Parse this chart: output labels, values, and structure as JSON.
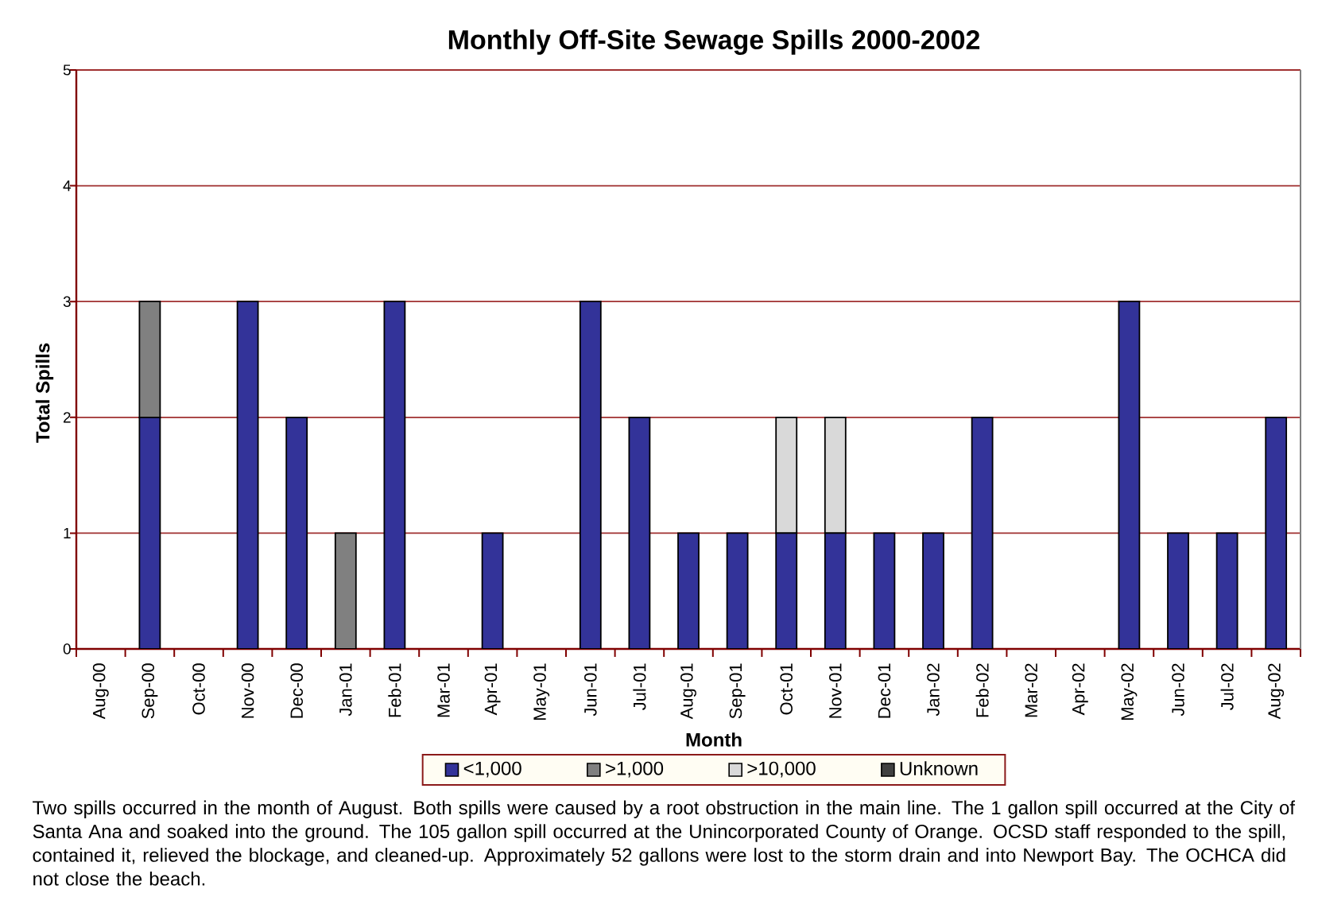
{
  "chart_data": {
    "type": "bar",
    "title": "Monthly Off-Site Sewage Spills 2000-2002",
    "xlabel": "Month",
    "ylabel": "Total Spills",
    "categories": [
      "Aug-00",
      "Sep-00",
      "Oct-00",
      "Nov-00",
      "Dec-00",
      "Jan-01",
      "Feb-01",
      "Mar-01",
      "Apr-01",
      "May-01",
      "Jun-01",
      "Jul-01",
      "Aug-01",
      "Sep-01",
      "Oct-01",
      "Nov-01",
      "Dec-01",
      "Jan-02",
      "Feb-02",
      "Mar-02",
      "Apr-02",
      "May-02",
      "Jun-02",
      "Jul-02",
      "Aug-02"
    ],
    "series": [
      {
        "name": "<1,000",
        "color": "#333399",
        "values": [
          0,
          2,
          0,
          3,
          2,
          0,
          3,
          0,
          1,
          0,
          3,
          2,
          1,
          1,
          1,
          1,
          1,
          1,
          2,
          0,
          0,
          3,
          1,
          1,
          2
        ]
      },
      {
        "name": ">1,000",
        "color": "#808080",
        "values": [
          0,
          1,
          0,
          0,
          0,
          1,
          0,
          0,
          0,
          0,
          0,
          0,
          0,
          0,
          0,
          0,
          0,
          0,
          0,
          0,
          0,
          0,
          0,
          0,
          0
        ]
      },
      {
        "name": ">10,000",
        "color": "#d9d9d9",
        "values": [
          0,
          0,
          0,
          0,
          0,
          0,
          0,
          0,
          0,
          0,
          0,
          0,
          0,
          0,
          1,
          1,
          0,
          0,
          0,
          0,
          0,
          0,
          0,
          0,
          0
        ]
      },
      {
        "name": "Unknown",
        "color": "#404040",
        "values": [
          0,
          0,
          0,
          0,
          0,
          0,
          0,
          0,
          0,
          0,
          0,
          0,
          0,
          0,
          0,
          0,
          0,
          0,
          0,
          0,
          0,
          0,
          0,
          0,
          0
        ]
      }
    ],
    "stacked": true,
    "ylim": [
      0,
      5
    ],
    "yticks": [
      0,
      1,
      2,
      3,
      4,
      5
    ],
    "grid": "y",
    "legend": "bottom",
    "annotations": [
      "Two spills occurred in the month of August.  Both spills were caused by a root obstruction in the main line.  The 1 gallon spill occurred at the City of Santa Ana and soaked into the ground.  The 105 gallon spill occurred at the Unincorporated County of Orange.  OCSD staff responded to the spill, contained it, relieved the blockage, and cleaned-up.  Approximately 52 gallons were lost to the storm drain and into Newport Bay.  The OCHCA did not close the beach."
    ]
  }
}
